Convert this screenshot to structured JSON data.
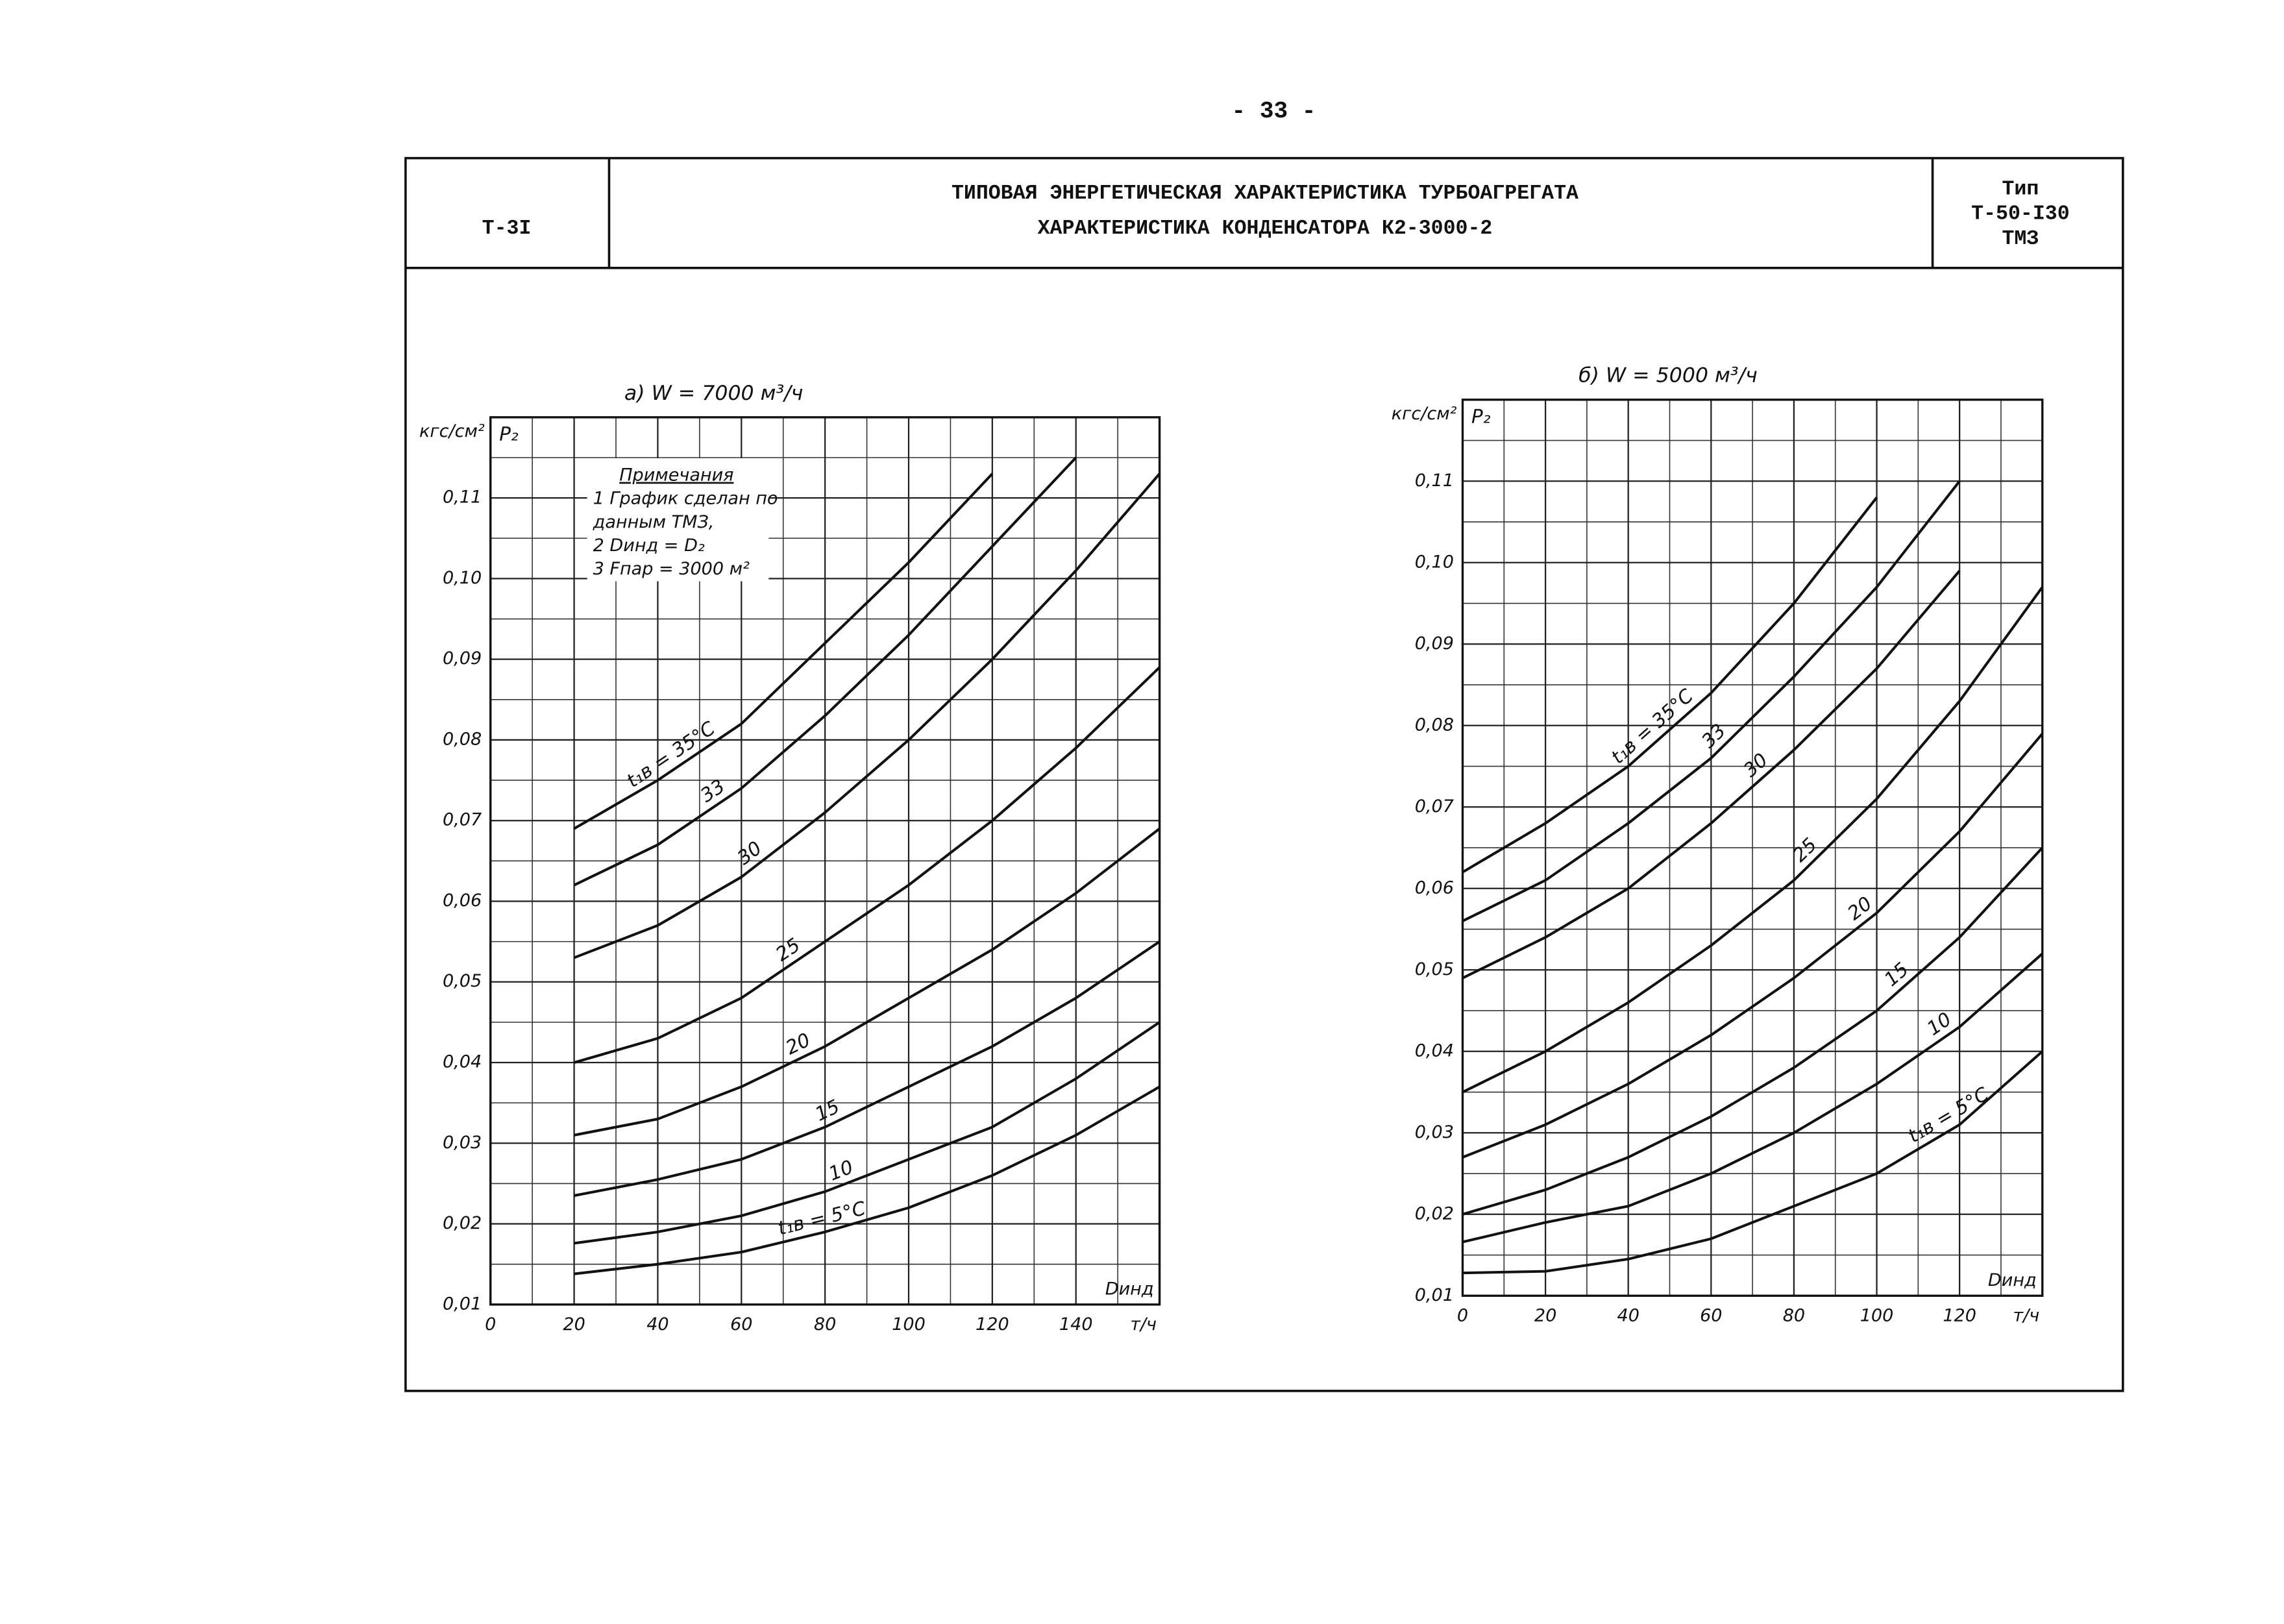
{
  "page_number": "- 33 -",
  "header": {
    "code": "Т-3I",
    "title": [
      "ТИПОВАЯ ЭНЕРГЕТИЧЕСКАЯ ХАРАКТЕРИСТИКА ТУРБОАГРЕГАТА",
      "ХАРАКТЕРИСТИКА КОНДЕНСАТОРА К2-3000-2"
    ],
    "type": [
      "Тип",
      "Т-50-I30",
      "ТМЗ"
    ]
  },
  "chart_data": [
    {
      "type": "line",
      "title": "а) W = 7000 м³/ч",
      "y_unit": "кгс/см²",
      "y_label": "P₂",
      "x_label": "Dинд",
      "x_unit": "т/ч",
      "annotations": [
        "Примечания",
        "1 График сделан по",
        "данным ТМЗ,",
        "2 Dинд = D₂",
        "3 Fпар = 3000 м²"
      ],
      "x": [
        20,
        40,
        60,
        80,
        100,
        120,
        140,
        160
      ],
      "xlim": [
        0,
        160
      ],
      "xticks": [
        0,
        20,
        40,
        60,
        80,
        100,
        120,
        140
      ],
      "ylim": [
        0.01,
        0.12
      ],
      "yticks": [
        {
          "value": 0.01,
          "label": "0,01"
        },
        {
          "value": 0.02,
          "label": "0,02"
        },
        {
          "value": 0.03,
          "label": "0,03"
        },
        {
          "value": 0.04,
          "label": "0,04"
        },
        {
          "value": 0.05,
          "label": "0,05"
        },
        {
          "value": 0.06,
          "label": "0,06"
        },
        {
          "value": 0.07,
          "label": "0,07"
        },
        {
          "value": 0.08,
          "label": "0,08"
        },
        {
          "value": 0.09,
          "label": "0,09"
        },
        {
          "value": 0.1,
          "label": "0,10"
        },
        {
          "value": 0.11,
          "label": "0,11"
        }
      ],
      "grid": true,
      "series": [
        {
          "name": "t₁в = 35°C",
          "color": "#111111",
          "values": [
            0.069,
            0.075,
            0.082,
            0.092,
            0.102,
            0.113,
            null,
            null
          ]
        },
        {
          "name": "33",
          "color": "#111111",
          "values": [
            0.062,
            0.067,
            0.074,
            0.083,
            0.093,
            0.104,
            0.115,
            null
          ]
        },
        {
          "name": "30",
          "color": "#111111",
          "values": [
            0.053,
            0.057,
            0.063,
            0.071,
            0.08,
            0.09,
            0.101,
            0.113
          ]
        },
        {
          "name": "25",
          "color": "#111111",
          "values": [
            0.04,
            0.043,
            0.048,
            0.055,
            0.062,
            0.07,
            0.079,
            0.089
          ]
        },
        {
          "name": "20",
          "color": "#111111",
          "values": [
            0.031,
            0.033,
            0.037,
            0.042,
            0.048,
            0.054,
            0.061,
            0.069
          ]
        },
        {
          "name": "15",
          "color": "#111111",
          "values": [
            0.0235,
            0.0255,
            0.028,
            0.032,
            0.037,
            0.042,
            0.048,
            0.055
          ]
        },
        {
          "name": "10",
          "color": "#111111",
          "values": [
            0.0176,
            0.019,
            0.021,
            0.024,
            0.028,
            0.032,
            0.038,
            0.045
          ]
        },
        {
          "name": "t₁в = 5°C",
          "color": "#111111",
          "values": [
            0.0138,
            0.015,
            0.0165,
            0.019,
            0.022,
            0.026,
            0.031,
            0.037
          ]
        }
      ]
    },
    {
      "type": "line",
      "title": "б) W = 5000 м³/ч",
      "y_unit": "кгс/см²",
      "y_label": "P₂",
      "x_label": "Dинд",
      "x_unit": "т/ч",
      "x": [
        0,
        20,
        40,
        60,
        80,
        100,
        120,
        140
      ],
      "xlim": [
        0,
        140
      ],
      "xticks": [
        0,
        20,
        40,
        60,
        80,
        100,
        120
      ],
      "ylim": [
        0.01,
        0.12
      ],
      "yticks": [
        {
          "value": 0.01,
          "label": "0,01"
        },
        {
          "value": 0.02,
          "label": "0,02"
        },
        {
          "value": 0.03,
          "label": "0,03"
        },
        {
          "value": 0.04,
          "label": "0,04"
        },
        {
          "value": 0.05,
          "label": "0,05"
        },
        {
          "value": 0.06,
          "label": "0,06"
        },
        {
          "value": 0.07,
          "label": "0,07"
        },
        {
          "value": 0.08,
          "label": "0,08"
        },
        {
          "value": 0.09,
          "label": "0,09"
        },
        {
          "value": 0.1,
          "label": "0,10"
        },
        {
          "value": 0.11,
          "label": "0,11"
        }
      ],
      "grid": true,
      "series": [
        {
          "name": "t₁в = 35°C",
          "color": "#111111",
          "values": [
            0.062,
            0.068,
            0.075,
            0.084,
            0.095,
            0.108,
            null,
            null
          ]
        },
        {
          "name": "33",
          "color": "#111111",
          "values": [
            0.056,
            0.061,
            0.068,
            0.076,
            0.086,
            0.097,
            0.11,
            null
          ]
        },
        {
          "name": "30",
          "color": "#111111",
          "values": [
            0.049,
            0.054,
            0.06,
            0.068,
            0.077,
            0.087,
            0.099,
            null
          ]
        },
        {
          "name": "25",
          "color": "#111111",
          "values": [
            0.035,
            0.04,
            0.046,
            0.053,
            0.061,
            0.071,
            0.083,
            0.097
          ]
        },
        {
          "name": "20",
          "color": "#111111",
          "values": [
            0.027,
            0.031,
            0.036,
            0.042,
            0.049,
            0.057,
            0.067,
            0.079
          ]
        },
        {
          "name": "15",
          "color": "#111111",
          "values": [
            0.02,
            0.023,
            0.027,
            0.032,
            0.038,
            0.045,
            0.054,
            0.065
          ]
        },
        {
          "name": "10",
          "color": "#111111",
          "values": [
            0.0166,
            0.019,
            0.021,
            0.025,
            0.03,
            0.036,
            0.043,
            0.052
          ]
        },
        {
          "name": "t₁в = 5°C",
          "color": "#111111",
          "values": [
            0.0128,
            0.013,
            0.0145,
            0.017,
            0.021,
            0.025,
            0.031,
            0.04
          ]
        }
      ]
    }
  ]
}
